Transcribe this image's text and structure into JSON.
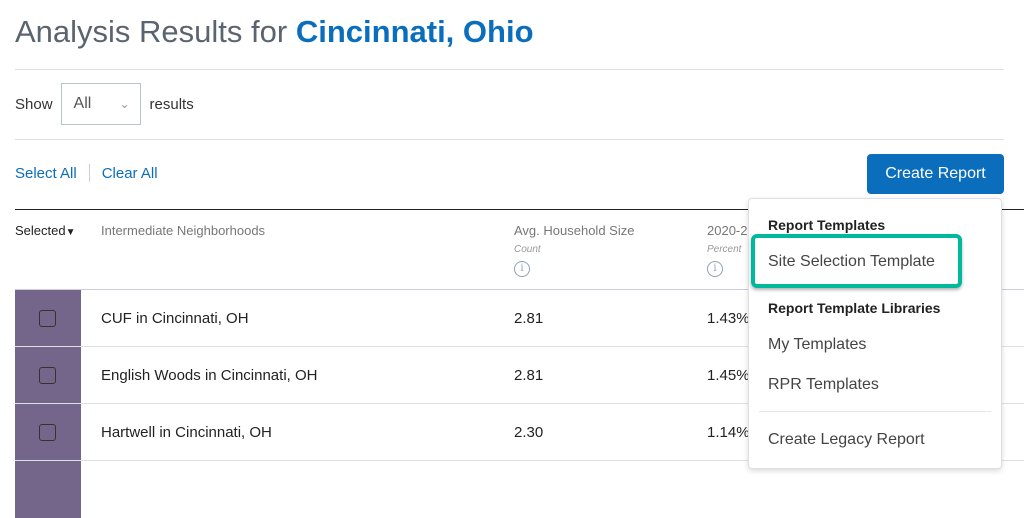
{
  "header": {
    "title_prefix": "Analysis Results for",
    "city": "Cincinnati, Ohio"
  },
  "filter": {
    "show_label": "Show",
    "selected": "All",
    "results_label": "results"
  },
  "actions": {
    "select_all": "Select All",
    "clear_all": "Clear All",
    "create_report": "Create Report"
  },
  "table": {
    "columns": [
      {
        "label": "Selected"
      },
      {
        "label": "Intermediate Neighborhoods"
      },
      {
        "label": "Avg. Household Size",
        "unit": "Count"
      },
      {
        "label": "2020-2",
        "unit": "Percent"
      }
    ],
    "rows": [
      {
        "name": "CUF in Cincinnati, OH",
        "hh": "2.81",
        "pct": "1.43%"
      },
      {
        "name": "English Woods in Cincinnati, OH",
        "hh": "2.81",
        "pct": "1.45%"
      },
      {
        "name": "Hartwell in Cincinnati, OH",
        "hh": "2.30",
        "pct": "1.14%"
      }
    ]
  },
  "menu": {
    "section1": "Report Templates",
    "site_selection": "Site Selection Template",
    "section2": "Report Template Libraries",
    "my_templates": "My Templates",
    "rpr_templates": "RPR Templates",
    "legacy": "Create Legacy Report"
  },
  "colors": {
    "accent": "#0a6ebd",
    "highlight": "#00b89c",
    "checkbox_col": "#73668a"
  }
}
